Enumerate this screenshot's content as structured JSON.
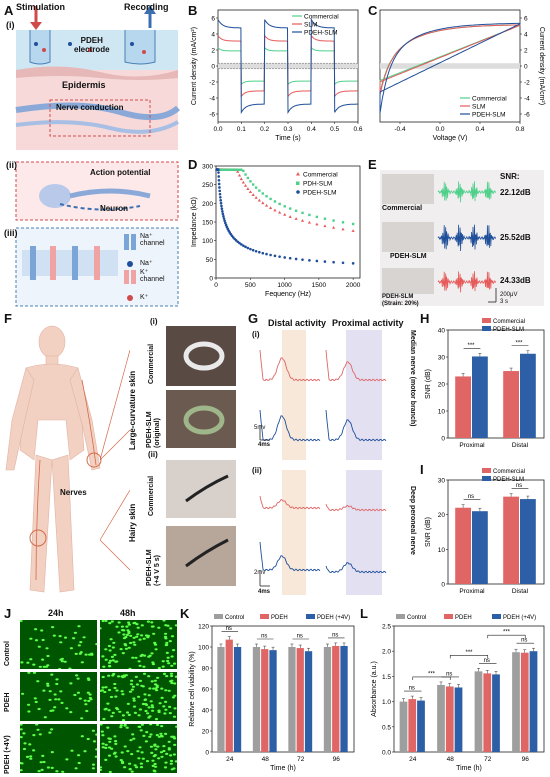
{
  "panel_letters": [
    "A",
    "B",
    "C",
    "D",
    "E",
    "F",
    "G",
    "H",
    "I",
    "J",
    "K",
    "L"
  ],
  "panelA": {
    "sub_i": "(i)",
    "sub_ii": "(ii)",
    "sub_iii": "(iii)",
    "stimulation": "Stimulation",
    "recording": "Recording",
    "electrode": "PDEH\nelectrode",
    "epidermis": "Epidermis",
    "nerve": "Nerve conduction",
    "action": "Action potential",
    "neuron": "Neuron",
    "na_channel": "Na⁺\nchannel",
    "na": "Na⁺",
    "k_channel": "K⁺\nchannel",
    "k": "K⁺"
  },
  "panelE": {
    "snr_title": "SNR:",
    "labels": [
      "Commercial",
      "PDEH-SLM",
      "PDEH-SLM\n(Strain: 20%)"
    ],
    "snr_values": [
      "22.12dB",
      "25.52dB",
      "24.33dB"
    ],
    "scale_v": "200μV",
    "scale_t": "3 s"
  },
  "panelF": {
    "sub_i": "(i)",
    "sub_ii": "(ii)",
    "skin_i": "Large-curvature skin",
    "skin_ii": "Hairy skin",
    "photo_labels": [
      "Commercial",
      "PDEH-SLM\n(original)",
      "Commercial",
      "PDEH-SLM\n(+4 V 5 s)"
    ],
    "nerves": "Nerves"
  },
  "panelG": {
    "sub_i": "(i)",
    "sub_ii": "(ii)",
    "distal": "Distal activity",
    "proximal": "Proximal activity",
    "nerve_i": "Median nerve (motor branch)",
    "nerve_ii": "Deep peroneal nerve",
    "scale_i_v": "5mv",
    "scale_i_t": "4ms",
    "scale_ii_v": "2mv",
    "scale_ii_t": "4ms"
  },
  "panelJ": {
    "cols": [
      "24h",
      "48h"
    ],
    "rows": [
      "Control",
      "PDEH",
      "PDEH (+4V)"
    ]
  },
  "colors": {
    "commercial": "#4fd08a",
    "slm": "#e65a5a",
    "pdeh_slm": "#1f4f9a",
    "bar_red": "#e06666",
    "bar_blue": "#2d5fa6",
    "bar_gray": "#9e9e9e",
    "shade_orange": "#f6e2cf",
    "shade_purple": "#dcd8ef"
  },
  "chart_data": [
    {
      "id": "B",
      "type": "line",
      "xlabel": "Time (s)",
      "ylabel": "Current density (mA/cm²)",
      "xlim": [
        0,
        0.6
      ],
      "ylim": [
        -7,
        7
      ],
      "xticks": [
        "0.0",
        "0.1",
        "0.2",
        "0.3",
        "0.4",
        "0.5",
        "0.6"
      ],
      "yticks": [
        "-6",
        "-4",
        "-2",
        "0",
        "2",
        "4",
        "6"
      ],
      "series": [
        {
          "name": "Commercial",
          "high": 2.3,
          "low": -2.3
        },
        {
          "name": "SLM",
          "high": 3.8,
          "low": -3.8
        },
        {
          "name": "PDEH-SLM",
          "high": 5.8,
          "low": -5.8
        }
      ],
      "period": 0.2
    },
    {
      "id": "C",
      "type": "line",
      "xlabel": "Voltage (V)",
      "ylabel": "Current density (mA/cm²)",
      "xlim": [
        -0.6,
        0.8
      ],
      "ylim": [
        -7,
        7
      ],
      "xticks": [
        "-0.4",
        "0.0",
        "0.4",
        "0.8"
      ],
      "yticks": [
        "-6",
        "-4",
        "-2",
        "0",
        "2",
        "4",
        "6"
      ],
      "series": [
        {
          "name": "Commercial",
          "min": -3.3,
          "max": 5.3
        },
        {
          "name": "SLM",
          "min": -3.6,
          "max": 5.3
        },
        {
          "name": "PDEH-SLM",
          "min": -5.9,
          "max": 5.5
        }
      ]
    },
    {
      "id": "D",
      "type": "scatter",
      "xlabel": "Fequency (Hz)",
      "ylabel": "Impedance (kΩ)",
      "xlim": [
        0,
        2100
      ],
      "ylim": [
        0,
        300
      ],
      "xticks": [
        "0",
        "500",
        "1000",
        "1500",
        "2000"
      ],
      "yticks": [
        "0",
        "50",
        "100",
        "150",
        "200",
        "250",
        "300"
      ],
      "series": [
        {
          "name": "Commercial",
          "k": 5200,
          "floor": 22
        },
        {
          "name": "PDH-SLM",
          "k": 5700,
          "floor": 30
        },
        {
          "name": "PDEH-SLM",
          "k": 1900,
          "floor": 1
        }
      ]
    },
    {
      "id": "H",
      "type": "bar",
      "ylabel": "SNR (dB)",
      "ylim": [
        0,
        40
      ],
      "yticks": [
        "0",
        "10",
        "20",
        "30",
        "40"
      ],
      "categories": [
        "Proximal",
        "Distal"
      ],
      "series": [
        {
          "name": "Commercial",
          "values": [
            22.8,
            24.8
          ]
        },
        {
          "name": "PDEH-SLM",
          "values": [
            30.2,
            31.2
          ]
        }
      ],
      "sig": [
        "***",
        "***"
      ]
    },
    {
      "id": "I",
      "type": "bar",
      "ylabel": "SNR (dB)",
      "ylim": [
        0,
        30
      ],
      "yticks": [
        "0",
        "10",
        "20",
        "30"
      ],
      "categories": [
        "Proximal",
        "Distal"
      ],
      "series": [
        {
          "name": "Commercial",
          "values": [
            22.0,
            25.2
          ]
        },
        {
          "name": "PDEH-SLM",
          "values": [
            21.0,
            24.5
          ]
        }
      ],
      "sig": [
        "ns",
        "ns"
      ]
    },
    {
      "id": "K",
      "type": "bar",
      "xlabel": "Time (h)",
      "ylabel": "Relative cell viability (%)",
      "ylim": [
        0,
        120
      ],
      "yticks": [
        "0",
        "20",
        "40",
        "60",
        "80",
        "100",
        "120"
      ],
      "categories": [
        "24",
        "48",
        "72",
        "96"
      ],
      "series": [
        {
          "name": "Control",
          "values": [
            100,
            100,
            100,
            100
          ]
        },
        {
          "name": "PDEH",
          "values": [
            107,
            98,
            99,
            101
          ]
        },
        {
          "name": "PDEH (+4V)",
          "values": [
            100,
            97,
            96,
            101
          ]
        }
      ],
      "sig": [
        "ns",
        "ns",
        "ns",
        "ns"
      ]
    },
    {
      "id": "L",
      "type": "bar",
      "xlabel": "Time (h)",
      "ylabel": "Absorbance (a.u.)",
      "ylim": [
        0,
        2.5
      ],
      "yticks": [
        "0.0",
        "0.5",
        "1.0",
        "1.5",
        "2.0",
        "2.5"
      ],
      "categories": [
        "24",
        "48",
        "72",
        "96"
      ],
      "series": [
        {
          "name": "Control",
          "values": [
            1.0,
            1.33,
            1.6,
            1.98
          ]
        },
        {
          "name": "PDEH",
          "values": [
            1.05,
            1.3,
            1.56,
            1.97
          ]
        },
        {
          "name": "PDEH (+4V)",
          "values": [
            1.02,
            1.28,
            1.54,
            2.0
          ]
        }
      ],
      "sig": [
        "ns",
        "ns",
        "ns",
        "ns"
      ],
      "sig_between": [
        "***",
        "***",
        "***"
      ]
    }
  ]
}
